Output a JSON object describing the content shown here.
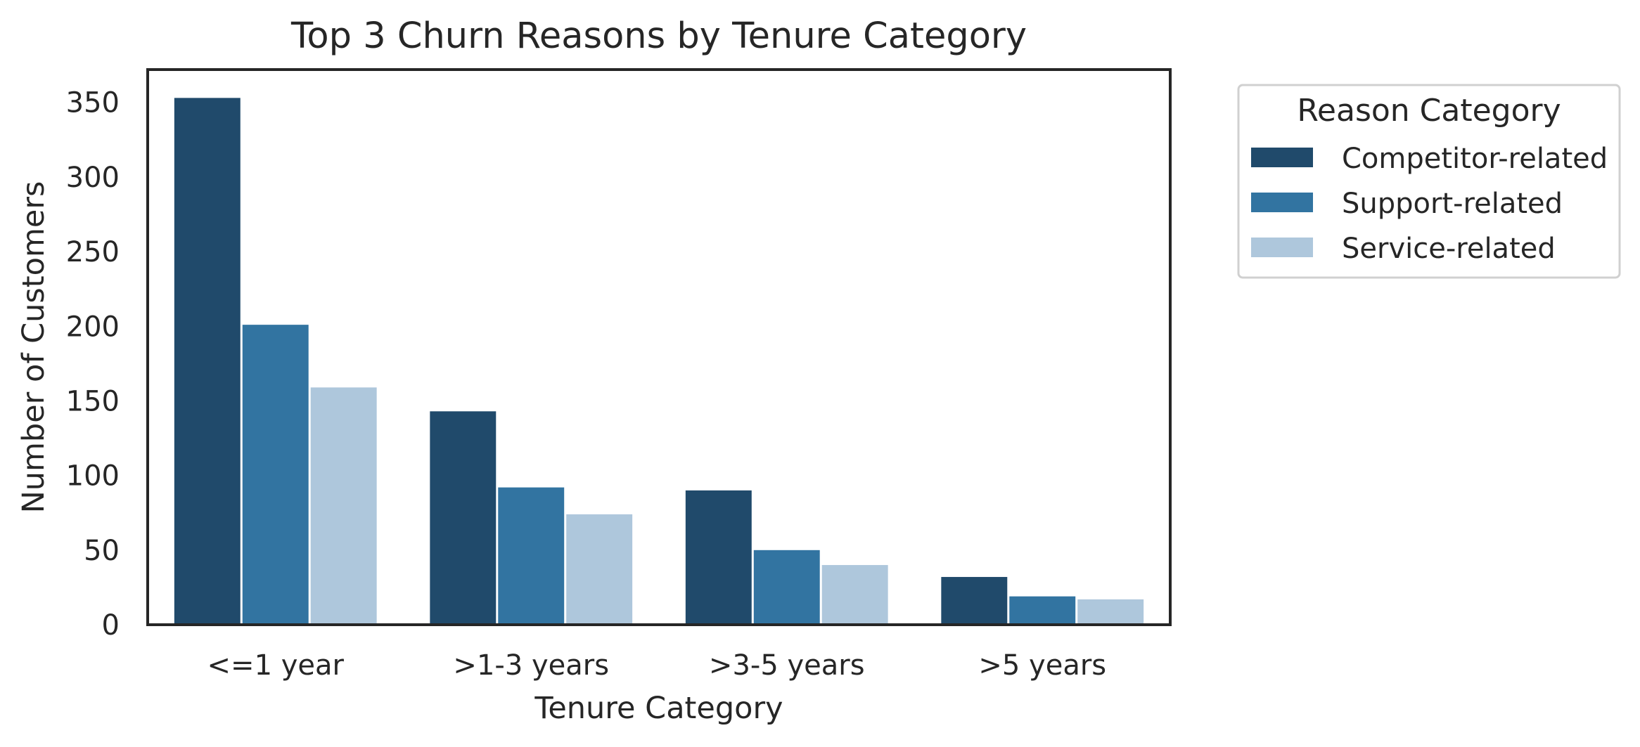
{
  "chart_data": {
    "type": "bar",
    "title": "Top 3 Churn Reasons by Tenure Category",
    "xlabel": "Tenure Category",
    "ylabel": "Number of Customers",
    "categories": [
      "<=1 year",
      ">1-3 years",
      ">3-5 years",
      ">5 years"
    ],
    "series": [
      {
        "name": "Competitor-related",
        "color": "#204a6b",
        "values": [
          353,
          143,
          90,
          32
        ]
      },
      {
        "name": "Support-related",
        "color": "#3274a1",
        "values": [
          201,
          92,
          50,
          19
        ]
      },
      {
        "name": "Service-related",
        "color": "#aec7dc",
        "values": [
          159,
          74,
          40,
          17
        ]
      }
    ],
    "ylim": [
      0,
      372
    ],
    "yticks": [
      0,
      50,
      100,
      150,
      200,
      250,
      300,
      350
    ],
    "grid": false,
    "legend": {
      "title": "Reason Category",
      "position": "outside-top-right"
    }
  }
}
